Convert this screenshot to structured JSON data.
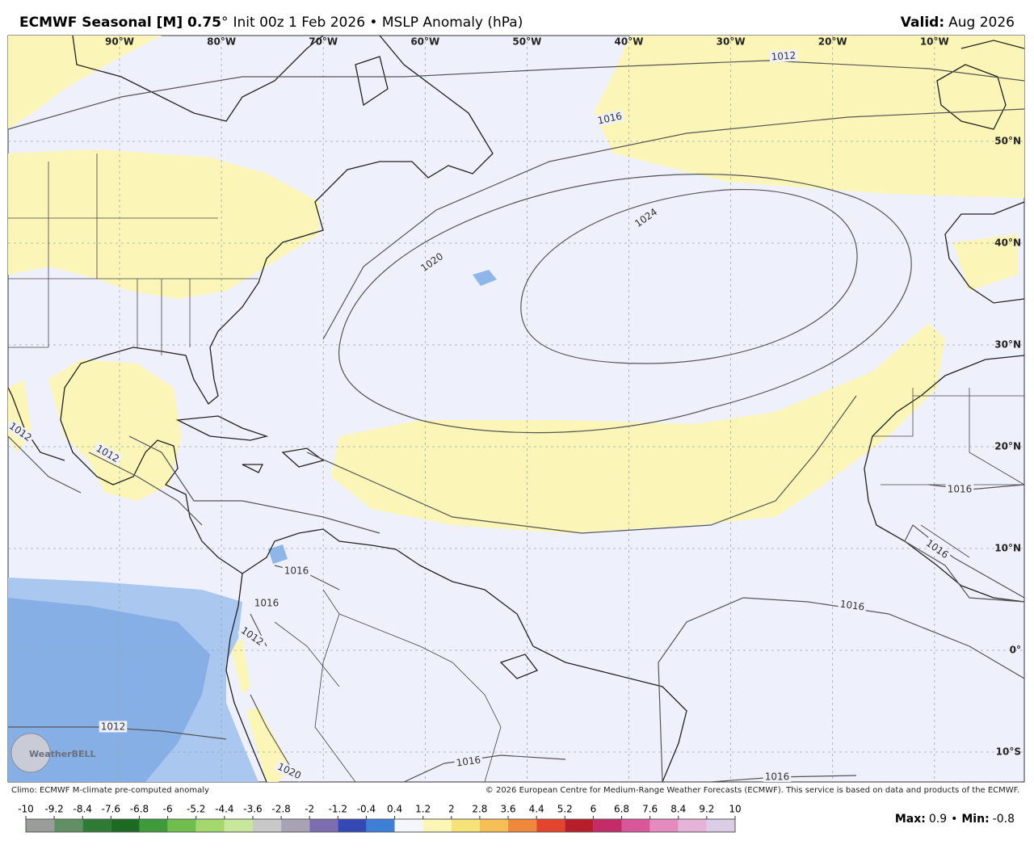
{
  "header": {
    "title_bold": "ECMWF Seasonal [M] 0.75",
    "degree": "°",
    "title_rest": "Init 00z 1 Feb 2026 • MSLP Anomaly (hPa)",
    "valid_label": "Valid:",
    "valid_value": "Aug 2026"
  },
  "map": {
    "lon_labels": [
      "90°W",
      "80°W",
      "70°W",
      "60°W",
      "50°W",
      "40°W",
      "30°W",
      "20°W",
      "10°W"
    ],
    "lat_labels": [
      "50°N",
      "40°N",
      "30°N",
      "20°N",
      "10°N",
      "0°",
      "10°S"
    ],
    "contour_labels": [
      1012,
      1016,
      1024,
      1020,
      1016,
      1012,
      1016,
      1016,
      1016,
      1016,
      1012,
      1012,
      1016,
      1016,
      1012,
      1020
    ],
    "watermark": "WeatherBELL"
  },
  "footer": {
    "climo": "Climo: ECMWF M-climate pre-computed anomaly",
    "copyright": "© 2026 European Centre for Medium-Range Weather Forecasts (ECMWF). This service is based on data and products of the ECMWF."
  },
  "colorbar": {
    "ticks": [
      -10,
      -9.2,
      -8.4,
      -7.6,
      -6.8,
      -6,
      -5.2,
      -4.4,
      -3.6,
      -2.8,
      -2,
      -1.2,
      -0.4,
      0.4,
      1.2,
      2,
      2.8,
      3.6,
      4.4,
      5.2,
      6,
      6.8,
      7.6,
      8.4,
      9.2,
      10
    ],
    "colors": [
      "#9a9d9a",
      "#5f8f62",
      "#2f7a35",
      "#1d6a22",
      "#3f9a3a",
      "#6fbd4c",
      "#a3d86e",
      "#c9e79a",
      "#c8c8c8",
      "#a8a2b5",
      "#7c6db0",
      "#3449b6",
      "#3d7fd6",
      "#f4f6fc",
      "#fbf6b6",
      "#f7e27a",
      "#f5bf55",
      "#f0883a",
      "#e2452c",
      "#b81d2a",
      "#c42c68",
      "#d8579a",
      "#e58bc0",
      "#e6b3d8",
      "#dccde6"
    ]
  },
  "stats": {
    "max_label": "Max:",
    "max": 0.9,
    "separator": "•",
    "min_label": "Min:",
    "min": -0.8
  }
}
